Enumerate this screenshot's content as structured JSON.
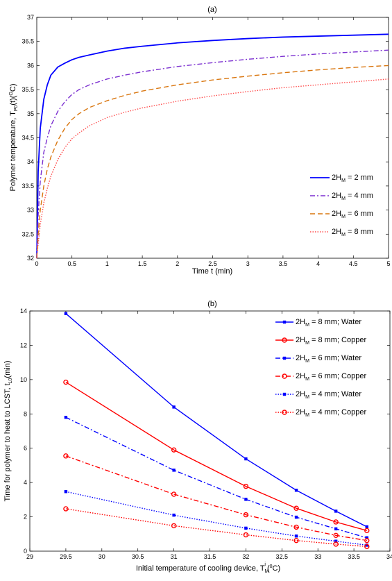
{
  "chart_data": [
    {
      "type": "line",
      "title": "(a)",
      "xlabel": "Time t (min)",
      "ylabel": {
        "main": "Polymer temperature, T",
        "sub": "P0",
        "after_sub": "(t)(",
        "sup": "O",
        "end": "C)"
      },
      "xlim": [
        0,
        5
      ],
      "ylim": [
        32,
        37
      ],
      "xticks": [
        0,
        0.5,
        1,
        1.5,
        2,
        2.5,
        3,
        3.5,
        4,
        4.5,
        5
      ],
      "xtick_labels": [
        "0",
        "0.5",
        "1",
        "1.5",
        "2",
        "2.5",
        "3",
        "3.5",
        "4",
        "4.5",
        "5"
      ],
      "yticks": [
        32,
        32.5,
        33,
        33.5,
        34,
        34.5,
        35,
        35.5,
        36,
        36.5,
        37
      ],
      "ytick_labels": [
        "32",
        "32.5",
        "33",
        "33.5",
        "34",
        "34.5",
        "35",
        "35.5",
        "36",
        "36.5",
        "37"
      ],
      "grid": false,
      "legend_position": "lower-right",
      "x": [
        0,
        0.02,
        0.05,
        0.1,
        0.15,
        0.2,
        0.3,
        0.4,
        0.5,
        0.6,
        0.75,
        1,
        1.25,
        1.5,
        2,
        2.5,
        3,
        3.5,
        4,
        4.5,
        5
      ],
      "series": [
        {
          "name": "2H_M = 2 mm",
          "label_parts": [
            "2H",
            "M",
            " = 2 mm"
          ],
          "color": "#0000ff",
          "dash": "",
          "values": [
            32.0,
            33.8,
            34.7,
            35.3,
            35.6,
            35.8,
            35.97,
            36.05,
            36.12,
            36.17,
            36.22,
            36.3,
            36.36,
            36.4,
            36.47,
            36.52,
            36.56,
            36.59,
            36.61,
            36.63,
            36.65
          ]
        },
        {
          "name": "2H_M = 4 mm",
          "label_parts": [
            "2H",
            "M",
            " = 4 mm"
          ],
          "color": "#7b2fd0",
          "dash": "7,3,2,3",
          "values": [
            32.0,
            32.9,
            33.6,
            34.2,
            34.5,
            34.75,
            35.05,
            35.25,
            35.4,
            35.5,
            35.6,
            35.72,
            35.8,
            35.87,
            35.98,
            36.06,
            36.13,
            36.19,
            36.24,
            36.28,
            36.32
          ]
        },
        {
          "name": "2H_M = 6 mm",
          "label_parts": [
            "2H",
            "M",
            " = 6 mm"
          ],
          "color": "#d9760f",
          "dash": "7,4",
          "values": [
            32.0,
            32.5,
            33.0,
            33.5,
            33.85,
            34.1,
            34.45,
            34.7,
            34.88,
            35.0,
            35.13,
            35.27,
            35.38,
            35.47,
            35.6,
            35.7,
            35.78,
            35.85,
            35.91,
            35.96,
            36.0
          ]
        },
        {
          "name": "2H_M = 8 mm",
          "label_parts": [
            "2H",
            "M",
            " = 8 mm"
          ],
          "color": "#ff4d4d",
          "dash": "1.5,2",
          "values": [
            32.0,
            32.3,
            32.7,
            33.15,
            33.45,
            33.7,
            34.05,
            34.3,
            34.48,
            34.6,
            34.75,
            34.92,
            35.03,
            35.12,
            35.26,
            35.37,
            35.46,
            35.54,
            35.6,
            35.66,
            35.72
          ]
        }
      ]
    },
    {
      "type": "line",
      "title": "(b)",
      "xlabel": {
        "main": "Initial temperature of cooling device, T",
        "sub": "M",
        "sup": "i",
        "after": "(",
        "sup2": "0",
        "end": "C)"
      },
      "ylabel": {
        "main": "Time for polymer to heat to LCST, t",
        "sub": "L0",
        "end": "(min)"
      },
      "xlim": [
        29,
        34
      ],
      "ylim": [
        0,
        14
      ],
      "xticks": [
        29,
        29.5,
        30,
        30.5,
        31,
        31.5,
        32,
        32.5,
        33,
        33.5,
        34
      ],
      "xtick_labels": [
        "29",
        "29.5",
        "30",
        "30.5",
        "31",
        "31.5",
        "32",
        "32.5",
        "33",
        "33.5",
        "34"
      ],
      "yticks": [
        0,
        2,
        4,
        6,
        8,
        10,
        12,
        14
      ],
      "ytick_labels": [
        "0",
        "2",
        "4",
        "6",
        "8",
        "10",
        "12",
        "14"
      ],
      "grid": false,
      "legend_position": "upper-right",
      "x": [
        29.5,
        31,
        32,
        32.7,
        33.25,
        33.68
      ],
      "series": [
        {
          "name": "2H_M = 8 mm; Water",
          "label_parts": [
            "2H",
            "M",
            " = 8 mm; Water"
          ],
          "color": "#0000ff",
          "dash": "",
          "marker": "square",
          "values": [
            13.85,
            8.4,
            5.38,
            3.55,
            2.33,
            1.42
          ]
        },
        {
          "name": "2H_M = 8 mm; Copper",
          "label_parts": [
            "2H",
            "M",
            " = 8 mm; Copper"
          ],
          "color": "#ff0000",
          "dash": "",
          "marker": "circle",
          "values": [
            9.85,
            5.9,
            3.78,
            2.5,
            1.7,
            1.2
          ]
        },
        {
          "name": "2H_M = 6 mm; Water",
          "label_parts": [
            "2H",
            "M",
            " = 6 mm; Water"
          ],
          "color": "#0000ff",
          "dash": "7,3,2,3",
          "marker": "square",
          "values": [
            7.8,
            4.72,
            3.02,
            1.98,
            1.3,
            0.78
          ]
        },
        {
          "name": "2H_M = 6 mm; Copper",
          "label_parts": [
            "2H",
            "M",
            " = 6 mm; Copper"
          ],
          "color": "#ff0000",
          "dash": "7,3,2,3",
          "marker": "circle",
          "values": [
            5.55,
            3.32,
            2.12,
            1.4,
            0.92,
            0.62
          ]
        },
        {
          "name": "2H_M = 4 mm; Water",
          "label_parts": [
            "2H",
            "M",
            " = 4 mm; Water"
          ],
          "color": "#0000ff",
          "dash": "1.5,2",
          "marker": "square",
          "values": [
            3.47,
            2.1,
            1.34,
            0.88,
            0.58,
            0.35
          ]
        },
        {
          "name": "2H_M = 4 mm; Copper",
          "label_parts": [
            "2H",
            "M",
            " = 4 mm; Copper"
          ],
          "color": "#ff0000",
          "dash": "1.5,2",
          "marker": "circle",
          "values": [
            2.47,
            1.48,
            0.95,
            0.62,
            0.41,
            0.27
          ]
        }
      ]
    }
  ]
}
